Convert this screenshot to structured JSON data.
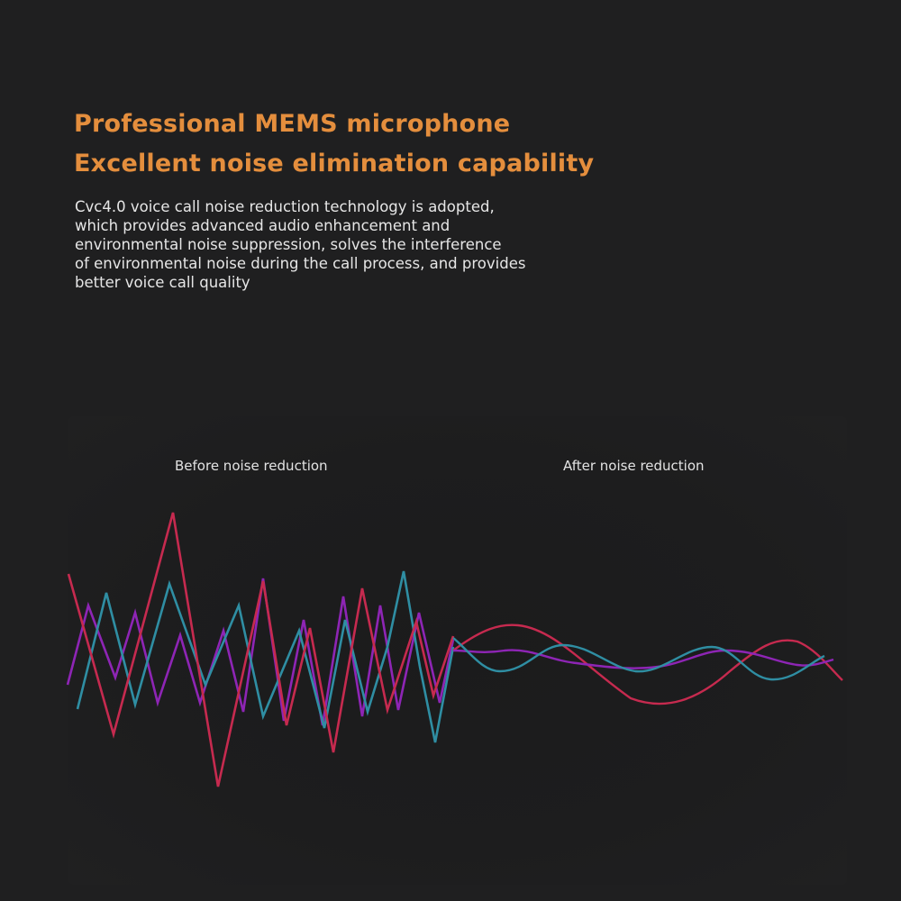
{
  "headline": {
    "line1": "Professional MEMS microphone",
    "line2": "Excellent noise elimination capability"
  },
  "description": {
    "lines": [
      "Cvc4.0 voice call noise reduction technology is adopted,",
      "which provides advanced audio enhancement and",
      "environmental noise suppression, solves the interference",
      "of environmental noise during the call process, and provides",
      "better voice call quality"
    ]
  },
  "comparison": {
    "before_label": "Before noise reduction",
    "after_label": "After noise reduction"
  },
  "colors": {
    "background": "#1f1f20",
    "headline": "#e48e3d",
    "wave_red": "#c62a4f",
    "wave_purple": "#8e25b5",
    "wave_teal": "#2f8ea3",
    "divider_blue": "#2b6fd6"
  }
}
